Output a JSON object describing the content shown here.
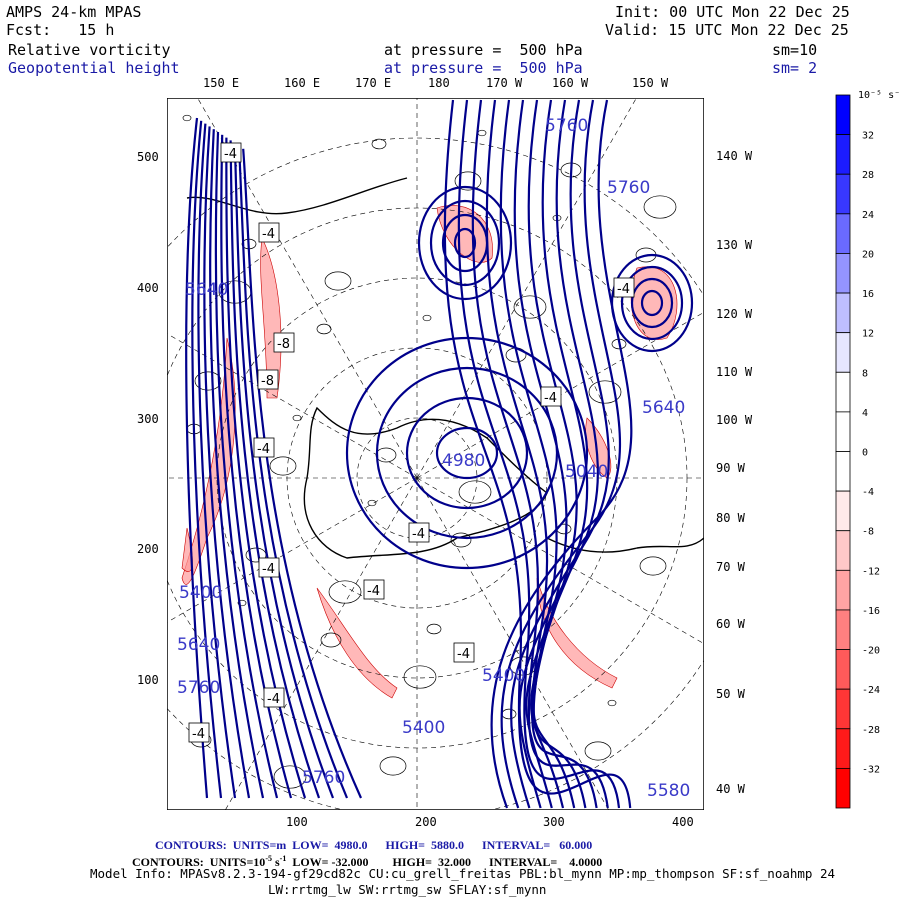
{
  "header": {
    "title": "AMPS 24-km MPAS",
    "fcst": "Fcst:   15 h",
    "init": "Init: 00 UTC Mon 22 Dec 25",
    "valid": "Valid: 15 UTC Mon 22 Dec 25",
    "field1": {
      "name": "Relative vorticity",
      "level": "at pressure =  500 hPa",
      "smooth": "sm=10"
    },
    "field2": {
      "name": "Geopotential height",
      "level": "at pressure =  500 hPa",
      "smooth": "sm= 2"
    }
  },
  "axes": {
    "top_lon": [
      "150 E",
      "160 E",
      "170 E",
      "180",
      "170 W",
      "160 W",
      "150 W"
    ],
    "right_lon": [
      "140 W",
      "130 W",
      "120 W",
      "110 W",
      "100 W",
      "90 W",
      "80 W",
      "70 W",
      "60 W",
      "50 W",
      "40 W"
    ],
    "left_y": [
      "500",
      "400",
      "300",
      "200",
      "100"
    ],
    "bottom_x": [
      "100",
      "200",
      "300",
      "400"
    ]
  },
  "colorbar": {
    "units": "10⁻⁵ s⁻¹",
    "labels": [
      "32",
      "28",
      "24",
      "20",
      "16",
      "12",
      "8",
      "4",
      "0",
      "-4",
      "-8",
      "-12",
      "-16",
      "-20",
      "-24",
      "-28",
      "-32"
    ],
    "colors": [
      "#0000ff",
      "#1c1cff",
      "#3838ff",
      "#6a6aff",
      "#9494ff",
      "#bebeff",
      "#e6e6ff",
      "#ffffff",
      "#ffffff",
      "#ffffff",
      "#ffeaea",
      "#ffc8c8",
      "#ffa4a4",
      "#ff8080",
      "#ff5a5a",
      "#ff3636",
      "#ff1a1a",
      "#ff0000"
    ]
  },
  "map": {
    "height_labels": [
      "5760",
      "5760",
      "5640",
      "5640",
      "4980",
      "5040",
      "5400",
      "5640",
      "5760",
      "5400",
      "5760",
      "5400",
      "5580"
    ],
    "vort_labels": [
      "-4",
      "-4",
      "-8",
      "-8",
      "-4",
      "-4",
      "-4",
      "-4",
      "-4",
      "-4",
      "-4",
      "-4",
      "-4"
    ],
    "colors": {
      "height": "#00008b",
      "vort": "#000000",
      "neg_fill": "#ff9a9a"
    }
  },
  "footer": {
    "contours_height": "CONTOURS:  UNITS=m  LOW=  4980.0      HIGH=  5880.0      INTERVAL=   60.000",
    "contours_vort_a": "CONTOURS:  UNITS=10",
    "contours_vort_exp": "-5",
    "contours_vort_b": " s",
    "contours_vort_exp2": "-1",
    "contours_vort_c": "  LOW= -32.000        HIGH=  32.000      INTERVAL=    4.0000",
    "model_info": "Model Info: MPASv8.2.3-194-gf29cd82c CU:cu_grell_freitas PBL:bl_mynn MP:mp_thompson SF:sf_noahmp 24",
    "model_info2": "LW:rrtmg_lw SW:rrtmg_sw SFLAY:sf_mynn"
  }
}
